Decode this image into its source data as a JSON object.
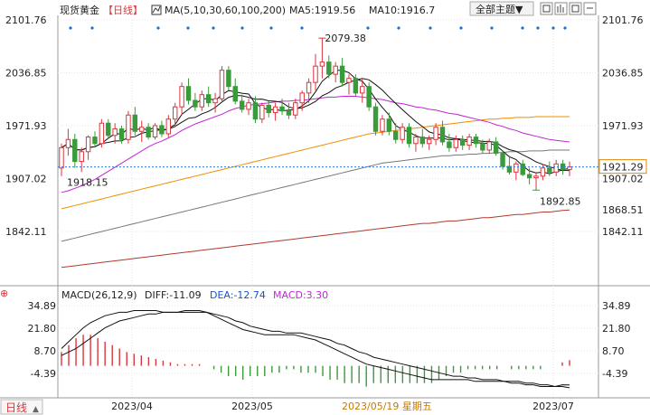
{
  "header": {
    "symbol": "现货黄金",
    "period_tag": "【日线】",
    "ma_label": "MA(5,10,30,60,100,200)",
    "ma5": "MA5:1919.56",
    "ma10": "MA10:1916.7",
    "theme_button": "全部主题▼"
  },
  "macd_header": {
    "label": "MACD(26,12,9)",
    "diff": "DIFF:-11.09",
    "dea": "DEA:-12.74",
    "macd": "MACD:3.30"
  },
  "footer": {
    "period_button": "日线",
    "date_cursor": "2023/05/19 星期五"
  },
  "colors": {
    "up": "#d9363e",
    "down": "#3a9b3a",
    "ma5": "#111111",
    "ma10": "#111111",
    "ma30": "#c026d3",
    "ma60": "#f08c00",
    "ma100": "#777777",
    "ma200": "#b03a2e",
    "price_line": "#2a7fd4",
    "date_cursor": "#c77a00"
  },
  "chart_data": {
    "type": "candlestick",
    "price_axis_ticks": [
      "2101.76",
      "2036.85",
      "1971.93",
      "1907.02",
      "1842.11"
    ],
    "price_axis_values": [
      2101.76,
      2036.85,
      1971.93,
      1907.02,
      1842.11
    ],
    "x_tick_labels": [
      "2023/04",
      "2023/05",
      "2023/07"
    ],
    "annotations": {
      "high": "2079.38",
      "low1": "1918.15",
      "low2": "1892.85",
      "last_price": "1921.29",
      "ma200_value": "1868.51"
    },
    "candles": [
      {
        "o": 1920,
        "h": 1950,
        "l": 1910,
        "c": 1945
      },
      {
        "o": 1945,
        "h": 1968,
        "l": 1935,
        "c": 1955
      },
      {
        "o": 1955,
        "h": 1962,
        "l": 1920,
        "c": 1928
      },
      {
        "o": 1928,
        "h": 1945,
        "l": 1915,
        "c": 1940
      },
      {
        "o": 1940,
        "h": 1960,
        "l": 1930,
        "c": 1958
      },
      {
        "o": 1958,
        "h": 1965,
        "l": 1945,
        "c": 1950
      },
      {
        "o": 1950,
        "h": 1980,
        "l": 1945,
        "c": 1975
      },
      {
        "o": 1975,
        "h": 1980,
        "l": 1955,
        "c": 1960
      },
      {
        "o": 1960,
        "h": 1975,
        "l": 1950,
        "c": 1968
      },
      {
        "o": 1968,
        "h": 1972,
        "l": 1950,
        "c": 1955
      },
      {
        "o": 1955,
        "h": 1990,
        "l": 1950,
        "c": 1985
      },
      {
        "o": 1985,
        "h": 1995,
        "l": 1960,
        "c": 1965
      },
      {
        "o": 1965,
        "h": 1978,
        "l": 1952,
        "c": 1970
      },
      {
        "o": 1970,
        "h": 1975,
        "l": 1955,
        "c": 1958
      },
      {
        "o": 1958,
        "h": 1975,
        "l": 1955,
        "c": 1972
      },
      {
        "o": 1972,
        "h": 1978,
        "l": 1958,
        "c": 1962
      },
      {
        "o": 1962,
        "h": 1985,
        "l": 1958,
        "c": 1980
      },
      {
        "o": 1980,
        "h": 2000,
        "l": 1970,
        "c": 1995
      },
      {
        "o": 1995,
        "h": 2025,
        "l": 1985,
        "c": 2020
      },
      {
        "o": 2020,
        "h": 2030,
        "l": 1998,
        "c": 2003
      },
      {
        "o": 2003,
        "h": 2012,
        "l": 1990,
        "c": 1995
      },
      {
        "o": 1995,
        "h": 2015,
        "l": 1990,
        "c": 2010
      },
      {
        "o": 2010,
        "h": 2020,
        "l": 1995,
        "c": 2000
      },
      {
        "o": 2000,
        "h": 2012,
        "l": 1988,
        "c": 2005
      },
      {
        "o": 2005,
        "h": 2045,
        "l": 2000,
        "c": 2040
      },
      {
        "o": 2040,
        "h": 2045,
        "l": 2015,
        "c": 2020
      },
      {
        "o": 2020,
        "h": 2030,
        "l": 1998,
        "c": 2002
      },
      {
        "o": 2002,
        "h": 2010,
        "l": 1988,
        "c": 1992
      },
      {
        "o": 1992,
        "h": 2005,
        "l": 1985,
        "c": 2000
      },
      {
        "o": 2000,
        "h": 2008,
        "l": 1975,
        "c": 1980
      },
      {
        "o": 1980,
        "h": 2000,
        "l": 1975,
        "c": 1997
      },
      {
        "o": 1997,
        "h": 2002,
        "l": 1982,
        "c": 1988
      },
      {
        "o": 1988,
        "h": 2000,
        "l": 1978,
        "c": 1995
      },
      {
        "o": 1995,
        "h": 2005,
        "l": 1985,
        "c": 1990
      },
      {
        "o": 1990,
        "h": 2000,
        "l": 1980,
        "c": 1985
      },
      {
        "o": 1985,
        "h": 2005,
        "l": 1980,
        "c": 2000
      },
      {
        "o": 2000,
        "h": 2015,
        "l": 1990,
        "c": 2012
      },
      {
        "o": 2012,
        "h": 2030,
        "l": 2000,
        "c": 2025
      },
      {
        "o": 2025,
        "h": 2060,
        "l": 2015,
        "c": 2045
      },
      {
        "o": 2045,
        "h": 2079.38,
        "l": 2030,
        "c": 2050
      },
      {
        "o": 2050,
        "h": 2058,
        "l": 2030,
        "c": 2035
      },
      {
        "o": 2035,
        "h": 2050,
        "l": 2025,
        "c": 2045
      },
      {
        "o": 2045,
        "h": 2055,
        "l": 2020,
        "c": 2025
      },
      {
        "o": 2025,
        "h": 2035,
        "l": 2010,
        "c": 2030
      },
      {
        "o": 2030,
        "h": 2035,
        "l": 2008,
        "c": 2012
      },
      {
        "o": 2012,
        "h": 2030,
        "l": 2000,
        "c": 2020
      },
      {
        "o": 2020,
        "h": 2025,
        "l": 1990,
        "c": 1995
      },
      {
        "o": 1995,
        "h": 2000,
        "l": 1960,
        "c": 1965
      },
      {
        "o": 1965,
        "h": 1985,
        "l": 1960,
        "c": 1980
      },
      {
        "o": 1980,
        "h": 1988,
        "l": 1960,
        "c": 1965
      },
      {
        "o": 1965,
        "h": 1975,
        "l": 1950,
        "c": 1955
      },
      {
        "o": 1955,
        "h": 1975,
        "l": 1950,
        "c": 1970
      },
      {
        "o": 1970,
        "h": 1975,
        "l": 1945,
        "c": 1950
      },
      {
        "o": 1950,
        "h": 1962,
        "l": 1940,
        "c": 1958
      },
      {
        "o": 1958,
        "h": 1968,
        "l": 1945,
        "c": 1950
      },
      {
        "o": 1950,
        "h": 1960,
        "l": 1942,
        "c": 1955
      },
      {
        "o": 1955,
        "h": 1975,
        "l": 1948,
        "c": 1970
      },
      {
        "o": 1970,
        "h": 1978,
        "l": 1948,
        "c": 1952
      },
      {
        "o": 1952,
        "h": 1962,
        "l": 1940,
        "c": 1945
      },
      {
        "o": 1945,
        "h": 1960,
        "l": 1940,
        "c": 1955
      },
      {
        "o": 1955,
        "h": 1960,
        "l": 1942,
        "c": 1948
      },
      {
        "o": 1948,
        "h": 1962,
        "l": 1942,
        "c": 1958
      },
      {
        "o": 1958,
        "h": 1962,
        "l": 1945,
        "c": 1950
      },
      {
        "o": 1950,
        "h": 1955,
        "l": 1938,
        "c": 1942
      },
      {
        "o": 1942,
        "h": 1956,
        "l": 1938,
        "c": 1952
      },
      {
        "o": 1952,
        "h": 1958,
        "l": 1935,
        "c": 1938
      },
      {
        "o": 1938,
        "h": 1942,
        "l": 1918,
        "c": 1922
      },
      {
        "o": 1922,
        "h": 1935,
        "l": 1912,
        "c": 1915
      },
      {
        "o": 1915,
        "h": 1928,
        "l": 1905,
        "c": 1925
      },
      {
        "o": 1925,
        "h": 1930,
        "l": 1910,
        "c": 1912
      },
      {
        "o": 1912,
        "h": 1920,
        "l": 1900,
        "c": 1908
      },
      {
        "o": 1908,
        "h": 1915,
        "l": 1892.85,
        "c": 1910
      },
      {
        "o": 1910,
        "h": 1925,
        "l": 1905,
        "c": 1920
      },
      {
        "o": 1920,
        "h": 1928,
        "l": 1910,
        "c": 1915
      },
      {
        "o": 1915,
        "h": 1930,
        "l": 1910,
        "c": 1925
      },
      {
        "o": 1925,
        "h": 1930,
        "l": 1912,
        "c": 1918
      },
      {
        "o": 1918,
        "h": 1928,
        "l": 1910,
        "c": 1921.29
      }
    ],
    "ma30_values": [
      1890,
      1892,
      1895,
      1898,
      1902,
      1906,
      1911,
      1916,
      1921,
      1926,
      1931,
      1936,
      1941,
      1946,
      1950,
      1953,
      1957,
      1961,
      1966,
      1970,
      1974,
      1977,
      1980,
      1983,
      1986,
      1990,
      1993,
      1995,
      1997,
      1998,
      1999,
      2000,
      2001,
      2002,
      2002,
      2003,
      2003,
      2004,
      2005,
      2006,
      2007,
      2007,
      2008,
      2008,
      2008,
      2007,
      2006,
      2005,
      2004,
      2002,
      2000,
      1999,
      1997,
      1995,
      1994,
      1992,
      1991,
      1989,
      1987,
      1986,
      1984,
      1982,
      1980,
      1978,
      1976,
      1973,
      1971,
      1968,
      1966,
      1963,
      1961,
      1959,
      1957,
      1955,
      1954,
      1953,
      1952
    ],
    "ma60_values": [
      1870,
      1872,
      1874,
      1876,
      1878,
      1880,
      1882,
      1884,
      1886,
      1888,
      1890,
      1892,
      1894,
      1896,
      1898,
      1900,
      1902,
      1904,
      1906,
      1908,
      1910,
      1912,
      1914,
      1916,
      1918,
      1920,
      1922,
      1924,
      1926,
      1928,
      1930,
      1932,
      1934,
      1936,
      1938,
      1940,
      1942,
      1944,
      1946,
      1948,
      1950,
      1952,
      1954,
      1956,
      1958,
      1960,
      1962,
      1963,
      1964,
      1965,
      1966,
      1967,
      1968,
      1969,
      1970,
      1971,
      1972,
      1973,
      1974,
      1975,
      1976,
      1977,
      1978,
      1979,
      1980,
      1980,
      1981,
      1981,
      1982,
      1982,
      1982,
      1983,
      1983,
      1983,
      1983,
      1983,
      1983
    ],
    "ma100_values": [
      1830,
      1832,
      1834,
      1836,
      1838,
      1840,
      1842,
      1844,
      1846,
      1848,
      1850,
      1852,
      1854,
      1856,
      1858,
      1860,
      1862,
      1864,
      1866,
      1868,
      1870,
      1872,
      1874,
      1876,
      1878,
      1880,
      1882,
      1884,
      1886,
      1888,
      1890,
      1892,
      1894,
      1896,
      1898,
      1900,
      1902,
      1904,
      1906,
      1908,
      1910,
      1912,
      1914,
      1916,
      1918,
      1920,
      1922,
      1924,
      1926,
      1927,
      1928,
      1929,
      1930,
      1931,
      1932,
      1933,
      1934,
      1935,
      1935,
      1936,
      1936,
      1937,
      1937,
      1938,
      1938,
      1939,
      1939,
      1940,
      1940,
      1940,
      1941,
      1941,
      1941,
      1942,
      1942,
      1942,
      1942
    ],
    "ma200_values": [
      1798,
      1799,
      1800,
      1801,
      1802,
      1803,
      1804,
      1805,
      1806,
      1807,
      1808,
      1809,
      1810,
      1811,
      1812,
      1813,
      1814,
      1815,
      1816,
      1817,
      1818,
      1819,
      1820,
      1821,
      1822,
      1823,
      1824,
      1825,
      1826,
      1827,
      1828,
      1829,
      1830,
      1831,
      1832,
      1833,
      1834,
      1835,
      1836,
      1837,
      1838,
      1839,
      1840,
      1841,
      1842,
      1843,
      1844,
      1845,
      1846,
      1847,
      1848,
      1849,
      1850,
      1851,
      1852,
      1852,
      1853,
      1854,
      1855,
      1855,
      1856,
      1857,
      1858,
      1859,
      1859,
      1860,
      1861,
      1862,
      1863,
      1863,
      1864,
      1865,
      1866,
      1866,
      1867,
      1868,
      1868.51
    ],
    "macd_axis_ticks": [
      "34.89",
      "21.80",
      "8.70",
      "-4.39"
    ],
    "macd_axis_values": [
      34.89,
      21.8,
      8.7,
      -4.39
    ],
    "diff_values": [
      10,
      14,
      18,
      22,
      25,
      27,
      29,
      30,
      31,
      31,
      32,
      32,
      32,
      32,
      31,
      31,
      31,
      32,
      32,
      32,
      31,
      29,
      27,
      25,
      23,
      21,
      20,
      19,
      18,
      18,
      18,
      18,
      18,
      17,
      16,
      15,
      13,
      11,
      9,
      7,
      5,
      3,
      1,
      0,
      -1,
      -2,
      -3,
      -4,
      -5,
      -6,
      -7,
      -8,
      -8,
      -8,
      -8,
      -8,
      -8,
      -9,
      -9,
      -9,
      -9,
      -9,
      -10,
      -10,
      -11,
      -11,
      -12,
      -12,
      -12,
      -11,
      -11.09
    ],
    "dea_values": [
      6,
      8,
      10,
      13,
      16,
      19,
      22,
      24,
      26,
      27,
      28,
      29,
      30,
      30,
      31,
      31,
      31,
      31,
      31,
      31,
      31,
      30,
      29,
      28,
      26,
      25,
      23,
      22,
      21,
      20,
      20,
      19,
      19,
      19,
      18,
      17,
      16,
      15,
      13,
      12,
      10,
      8,
      7,
      5,
      4,
      3,
      2,
      1,
      0,
      -1,
      -2,
      -3,
      -4,
      -5,
      -6,
      -6,
      -7,
      -7,
      -8,
      -8,
      -8,
      -9,
      -9,
      -9,
      -10,
      -10,
      -11,
      -11,
      -12,
      -12,
      -12.74
    ],
    "macd_hist": [
      8,
      12,
      16,
      18,
      18,
      16,
      14,
      12,
      10,
      8,
      7,
      6,
      5,
      4,
      3,
      2,
      1,
      1,
      1,
      1,
      0,
      -2,
      -4,
      -6,
      -6,
      -8,
      -6,
      -6,
      -6,
      -4,
      -4,
      -2,
      -2,
      -4,
      -4,
      -4,
      -6,
      -8,
      -8,
      -10,
      -10,
      -10,
      -12,
      -10,
      -10,
      -10,
      -10,
      -10,
      -10,
      -10,
      -10,
      -10,
      -8,
      -6,
      -4,
      -4,
      -2,
      -2,
      -2,
      -2,
      -2,
      0,
      -2,
      -2,
      -2,
      -2,
      -2,
      0,
      0,
      2,
      3.3
    ]
  }
}
